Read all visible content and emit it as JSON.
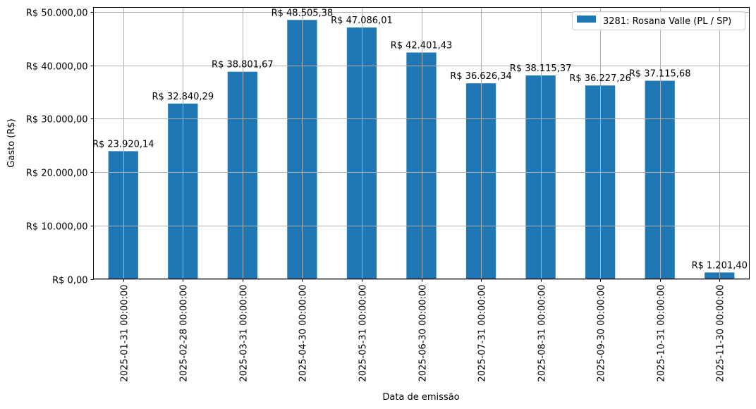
{
  "chart_data": {
    "type": "bar",
    "title": "",
    "xlabel": "Data de emissão",
    "ylabel": "Gasto (R$)",
    "ylim": [
      0,
      50850
    ],
    "grid": true,
    "legend_position": "upper right",
    "categories": [
      "2025-01-31 00:00:00",
      "2025-02-28 00:00:00",
      "2025-03-31 00:00:00",
      "2025-04-30 00:00:00",
      "2025-05-31 00:00:00",
      "2025-06-30 00:00:00",
      "2025-07-31 00:00:00",
      "2025-08-31 00:00:00",
      "2025-09-30 00:00:00",
      "2025-10-31 00:00:00",
      "2025-11-30 00:00:00"
    ],
    "series": [
      {
        "name": "3281: Rosana Valle (PL / SP)",
        "color": "#1f77b4",
        "values": [
          23920.14,
          32840.29,
          38801.67,
          48505.38,
          47086.01,
          42401.43,
          36626.34,
          38115.37,
          36227.26,
          37115.68,
          1201.4
        ],
        "labels": [
          "R$ 23.920,14",
          "R$ 32.840,29",
          "R$ 38.801,67",
          "R$ 48.505,38",
          "R$ 47.086,01",
          "R$ 42.401,43",
          "R$ 36.626,34",
          "R$ 38.115,37",
          "R$ 36.227,26",
          "R$ 37.115,68",
          "R$ 1.201,40"
        ]
      }
    ],
    "yticks": [
      0,
      10000,
      20000,
      30000,
      40000,
      50000
    ],
    "ytick_labels": [
      "R$ 0,00",
      "R$ 10.000,00",
      "R$ 20.000,00",
      "R$ 30.000,00",
      "R$ 40.000,00",
      "R$ 50.000,00"
    ]
  },
  "colors": {
    "bar": "#1f77b4",
    "grid": "#b0b0b0",
    "axis": "#000000",
    "background": "#ffffff"
  }
}
